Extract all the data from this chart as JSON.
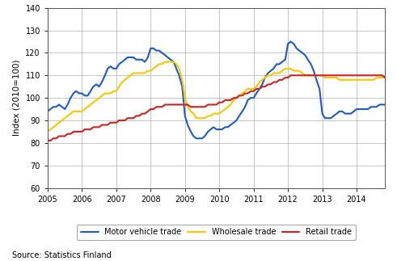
{
  "title": "",
  "ylabel": "Index (2010=100)",
  "source": "Source: Statistics Finland",
  "xlim": [
    2005.0,
    2014.83
  ],
  "ylim": [
    60,
    140
  ],
  "yticks": [
    60,
    70,
    80,
    90,
    100,
    110,
    120,
    130,
    140
  ],
  "xticks": [
    2005,
    2006,
    2007,
    2008,
    2009,
    2010,
    2011,
    2012,
    2013,
    2014
  ],
  "bg_color": "#ffffff",
  "grid_color": "#bbbbbb",
  "motor_color": "#1f5bc4",
  "wholesale_color": "#f5c800",
  "retail_color": "#cc2222",
  "motor_vehicle": {
    "x": [
      2005.0,
      2005.08,
      2005.17,
      2005.25,
      2005.33,
      2005.42,
      2005.5,
      2005.58,
      2005.67,
      2005.75,
      2005.83,
      2005.92,
      2006.0,
      2006.08,
      2006.17,
      2006.25,
      2006.33,
      2006.42,
      2006.5,
      2006.58,
      2006.67,
      2006.75,
      2006.83,
      2006.92,
      2007.0,
      2007.08,
      2007.17,
      2007.25,
      2007.33,
      2007.42,
      2007.5,
      2007.58,
      2007.67,
      2007.75,
      2007.83,
      2007.92,
      2008.0,
      2008.08,
      2008.17,
      2008.25,
      2008.33,
      2008.42,
      2008.5,
      2008.58,
      2008.67,
      2008.75,
      2008.83,
      2008.92,
      2009.0,
      2009.08,
      2009.17,
      2009.25,
      2009.33,
      2009.42,
      2009.5,
      2009.58,
      2009.67,
      2009.75,
      2009.83,
      2009.92,
      2010.0,
      2010.08,
      2010.17,
      2010.25,
      2010.33,
      2010.42,
      2010.5,
      2010.58,
      2010.67,
      2010.75,
      2010.83,
      2010.92,
      2011.0,
      2011.08,
      2011.17,
      2011.25,
      2011.33,
      2011.42,
      2011.5,
      2011.58,
      2011.67,
      2011.75,
      2011.83,
      2011.92,
      2012.0,
      2012.08,
      2012.17,
      2012.25,
      2012.33,
      2012.42,
      2012.5,
      2012.58,
      2012.67,
      2012.75,
      2012.83,
      2012.92,
      2013.0,
      2013.08,
      2013.17,
      2013.25,
      2013.33,
      2013.42,
      2013.5,
      2013.58,
      2013.67,
      2013.75,
      2013.83,
      2013.92,
      2014.0,
      2014.08,
      2014.17,
      2014.25,
      2014.33,
      2014.42,
      2014.5,
      2014.58,
      2014.67,
      2014.75,
      2014.83
    ],
    "y": [
      94,
      95,
      96,
      96,
      97,
      96,
      95,
      97,
      100,
      102,
      103,
      102,
      102,
      101,
      101,
      103,
      105,
      106,
      105,
      107,
      110,
      113,
      114,
      113,
      113,
      115,
      116,
      117,
      118,
      118,
      118,
      117,
      117,
      117,
      116,
      118,
      122,
      122,
      121,
      121,
      120,
      119,
      118,
      117,
      116,
      113,
      110,
      105,
      92,
      88,
      85,
      83,
      82,
      82,
      82,
      83,
      85,
      86,
      87,
      86,
      86,
      86,
      87,
      87,
      88,
      89,
      90,
      92,
      94,
      96,
      99,
      100,
      100,
      102,
      104,
      106,
      109,
      111,
      112,
      113,
      115,
      115,
      116,
      117,
      124,
      125,
      124,
      122,
      121,
      120,
      119,
      117,
      115,
      112,
      108,
      104,
      93,
      91,
      91,
      91,
      92,
      93,
      94,
      94,
      93,
      93,
      93,
      94,
      95,
      95,
      95,
      95,
      95,
      96,
      96,
      96,
      97,
      97,
      97
    ]
  },
  "wholesale": {
    "x": [
      2005.0,
      2005.08,
      2005.17,
      2005.25,
      2005.33,
      2005.42,
      2005.5,
      2005.58,
      2005.67,
      2005.75,
      2005.83,
      2005.92,
      2006.0,
      2006.08,
      2006.17,
      2006.25,
      2006.33,
      2006.42,
      2006.5,
      2006.58,
      2006.67,
      2006.75,
      2006.83,
      2006.92,
      2007.0,
      2007.08,
      2007.17,
      2007.25,
      2007.33,
      2007.42,
      2007.5,
      2007.58,
      2007.67,
      2007.75,
      2007.83,
      2007.92,
      2008.0,
      2008.08,
      2008.17,
      2008.25,
      2008.33,
      2008.42,
      2008.5,
      2008.58,
      2008.67,
      2008.75,
      2008.83,
      2008.92,
      2009.0,
      2009.08,
      2009.17,
      2009.25,
      2009.33,
      2009.42,
      2009.5,
      2009.58,
      2009.67,
      2009.75,
      2009.83,
      2009.92,
      2010.0,
      2010.08,
      2010.17,
      2010.25,
      2010.33,
      2010.42,
      2010.5,
      2010.58,
      2010.67,
      2010.75,
      2010.83,
      2010.92,
      2011.0,
      2011.08,
      2011.17,
      2011.25,
      2011.33,
      2011.42,
      2011.5,
      2011.58,
      2011.67,
      2011.75,
      2011.83,
      2011.92,
      2012.0,
      2012.08,
      2012.17,
      2012.25,
      2012.33,
      2012.42,
      2012.5,
      2012.58,
      2012.67,
      2012.75,
      2012.83,
      2012.92,
      2013.0,
      2013.08,
      2013.17,
      2013.25,
      2013.33,
      2013.42,
      2013.5,
      2013.58,
      2013.67,
      2013.75,
      2013.83,
      2013.92,
      2014.0,
      2014.08,
      2014.17,
      2014.25,
      2014.33,
      2014.42,
      2014.5,
      2014.58,
      2014.67,
      2014.75,
      2014.83
    ],
    "y": [
      85,
      86,
      87,
      88,
      89,
      90,
      91,
      92,
      93,
      94,
      94,
      94,
      94,
      95,
      96,
      97,
      98,
      99,
      100,
      101,
      102,
      102,
      102,
      103,
      103,
      105,
      107,
      108,
      109,
      110,
      111,
      111,
      111,
      111,
      111,
      112,
      112,
      113,
      114,
      115,
      115,
      116,
      116,
      116,
      116,
      115,
      113,
      108,
      100,
      96,
      94,
      93,
      91,
      91,
      91,
      91,
      92,
      92,
      93,
      93,
      93,
      94,
      95,
      96,
      97,
      99,
      100,
      101,
      102,
      103,
      104,
      104,
      104,
      105,
      107,
      108,
      109,
      110,
      110,
      111,
      111,
      111,
      112,
      113,
      113,
      113,
      112,
      112,
      112,
      111,
      110,
      110,
      110,
      110,
      110,
      110,
      110,
      109,
      109,
      109,
      109,
      109,
      108,
      108,
      108,
      108,
      108,
      108,
      108,
      108,
      108,
      108,
      108,
      108,
      108,
      109,
      109,
      109,
      109
    ]
  },
  "retail": {
    "x": [
      2005.0,
      2005.08,
      2005.17,
      2005.25,
      2005.33,
      2005.42,
      2005.5,
      2005.58,
      2005.67,
      2005.75,
      2005.83,
      2005.92,
      2006.0,
      2006.08,
      2006.17,
      2006.25,
      2006.33,
      2006.42,
      2006.5,
      2006.58,
      2006.67,
      2006.75,
      2006.83,
      2006.92,
      2007.0,
      2007.08,
      2007.17,
      2007.25,
      2007.33,
      2007.42,
      2007.5,
      2007.58,
      2007.67,
      2007.75,
      2007.83,
      2007.92,
      2008.0,
      2008.08,
      2008.17,
      2008.25,
      2008.33,
      2008.42,
      2008.5,
      2008.58,
      2008.67,
      2008.75,
      2008.83,
      2008.92,
      2009.0,
      2009.08,
      2009.17,
      2009.25,
      2009.33,
      2009.42,
      2009.5,
      2009.58,
      2009.67,
      2009.75,
      2009.83,
      2009.92,
      2010.0,
      2010.08,
      2010.17,
      2010.25,
      2010.33,
      2010.42,
      2010.5,
      2010.58,
      2010.67,
      2010.75,
      2010.83,
      2010.92,
      2011.0,
      2011.08,
      2011.17,
      2011.25,
      2011.33,
      2011.42,
      2011.5,
      2011.58,
      2011.67,
      2011.75,
      2011.83,
      2011.92,
      2012.0,
      2012.08,
      2012.17,
      2012.25,
      2012.33,
      2012.42,
      2012.5,
      2012.58,
      2012.67,
      2012.75,
      2012.83,
      2012.92,
      2013.0,
      2013.08,
      2013.17,
      2013.25,
      2013.33,
      2013.42,
      2013.5,
      2013.58,
      2013.67,
      2013.75,
      2013.83,
      2013.92,
      2014.0,
      2014.08,
      2014.17,
      2014.25,
      2014.33,
      2014.42,
      2014.5,
      2014.58,
      2014.67,
      2014.75,
      2014.83
    ],
    "y": [
      81,
      81,
      82,
      82,
      83,
      83,
      83,
      84,
      84,
      85,
      85,
      85,
      85,
      86,
      86,
      86,
      87,
      87,
      87,
      88,
      88,
      88,
      89,
      89,
      89,
      90,
      90,
      90,
      91,
      91,
      91,
      92,
      92,
      93,
      93,
      94,
      95,
      95,
      96,
      96,
      96,
      97,
      97,
      97,
      97,
      97,
      97,
      97,
      97,
      97,
      96,
      96,
      96,
      96,
      96,
      96,
      97,
      97,
      97,
      97,
      98,
      98,
      99,
      99,
      99,
      100,
      100,
      101,
      101,
      102,
      102,
      103,
      103,
      104,
      104,
      105,
      105,
      106,
      106,
      107,
      107,
      108,
      108,
      109,
      109,
      110,
      110,
      110,
      110,
      110,
      110,
      110,
      110,
      110,
      110,
      110,
      110,
      110,
      110,
      110,
      110,
      110,
      110,
      110,
      110,
      110,
      110,
      110,
      110,
      110,
      110,
      110,
      110,
      110,
      110,
      110,
      110,
      110,
      109
    ]
  }
}
